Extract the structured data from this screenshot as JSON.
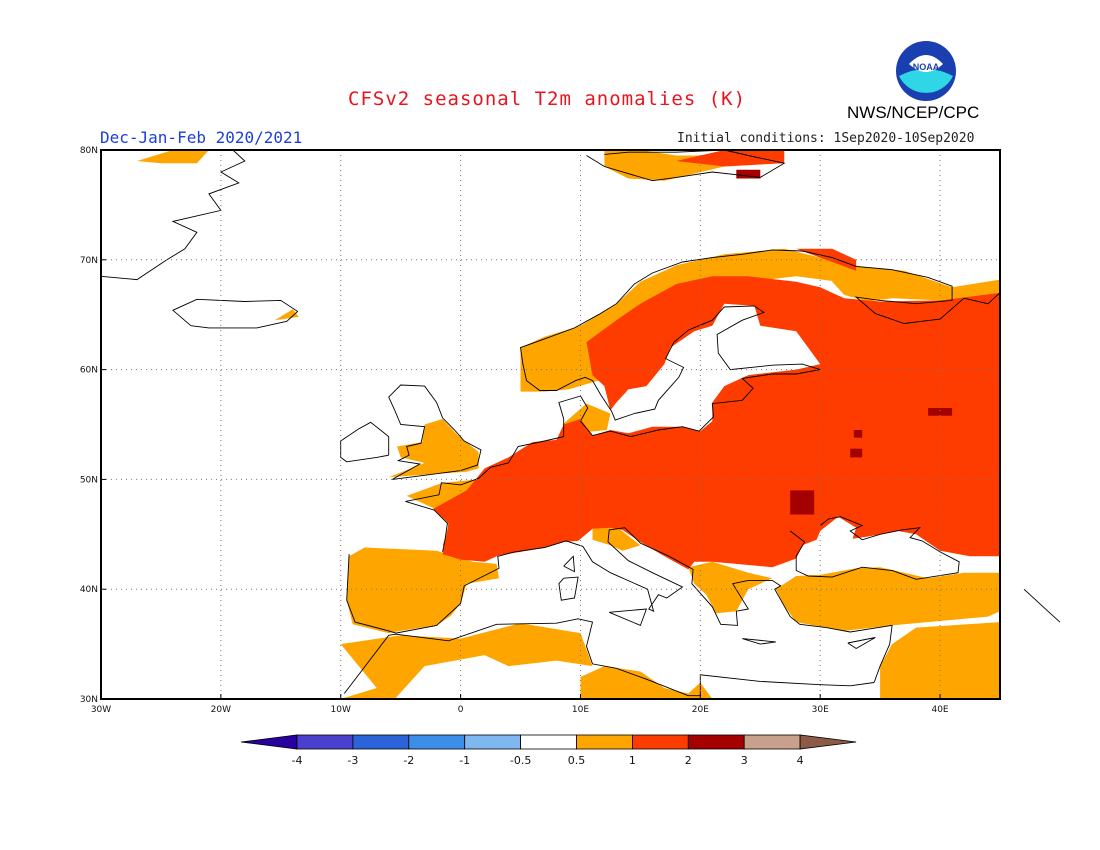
{
  "header": {
    "title": "CFSv2 seasonal T2m anomalies (K)",
    "season": "Dec-Jan-Feb 2020/2021",
    "initial_conditions": "Initial conditions: 1Sep2020-10Sep2020",
    "agency": "NWS/NCEP/CPC",
    "logo_text": "NOAA"
  },
  "map": {
    "region": "Europe",
    "lon_range": [
      -30,
      45
    ],
    "lat_range": [
      30,
      80
    ],
    "lon_ticks": [
      "30W",
      "20W",
      "10W",
      "0",
      "10E",
      "20E",
      "30E",
      "40E"
    ],
    "lat_ticks": [
      "80N",
      "70N",
      "60N",
      "50N",
      "40N",
      "30N"
    ],
    "grid": true
  },
  "colorbar": {
    "labels": [
      "-4",
      "-3",
      "-2",
      "-1",
      "-0.5",
      "0.5",
      "1",
      "2",
      "3",
      "4"
    ],
    "colors": [
      "#2800a0",
      "#4b3fd0",
      "#2a64d8",
      "#3c8ee8",
      "#7fb8f0",
      "#ffffff",
      "#ffa500",
      "#ff3c00",
      "#a50000",
      "#c8a08c",
      "#8c5a46"
    ]
  },
  "anomaly_colors": {
    "0.5-1": "#ffa500",
    "1-2": "#ff3c00",
    "2-3": "#a50000"
  }
}
